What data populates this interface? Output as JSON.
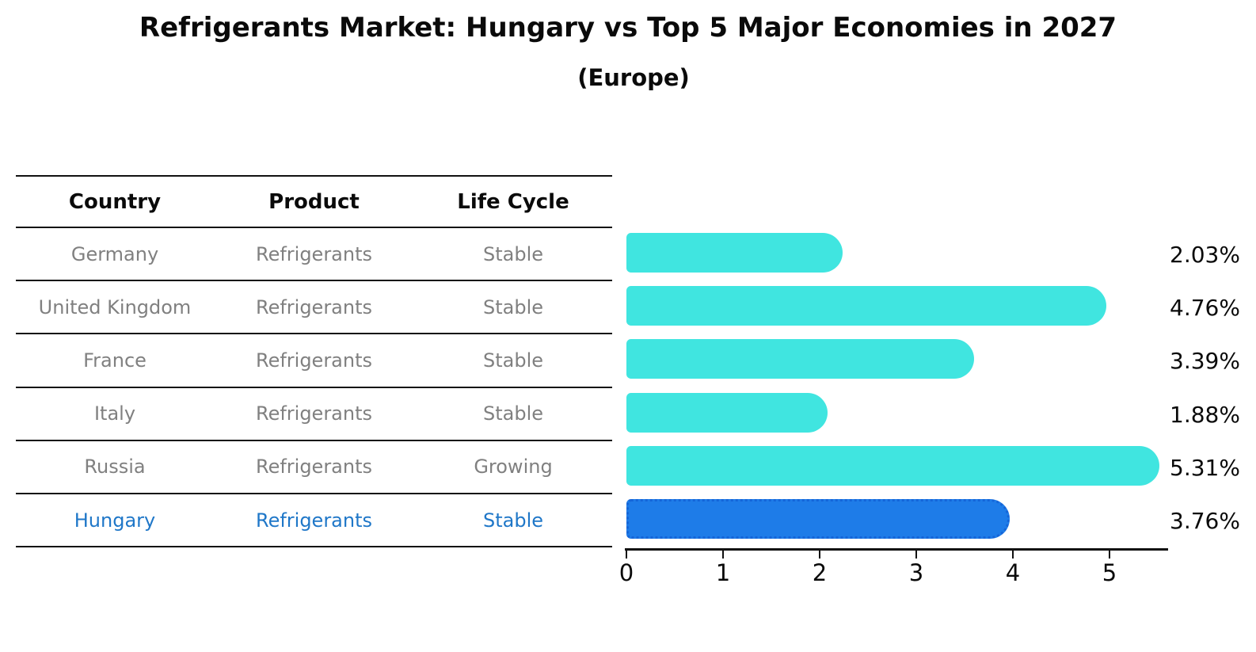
{
  "title": "Refrigerants Market: Hungary vs Top 5 Major Economies in 2027",
  "subtitle": "(Europe)",
  "table": {
    "headers": [
      "Country",
      "Product",
      "Life Cycle"
    ],
    "rows": [
      {
        "country": "Germany",
        "product": "Refrigerants",
        "life_cycle": "Stable",
        "highlight": false
      },
      {
        "country": "United Kingdom",
        "product": "Refrigerants",
        "life_cycle": "Stable",
        "highlight": false
      },
      {
        "country": "France",
        "product": "Refrigerants",
        "life_cycle": "Stable",
        "highlight": false
      },
      {
        "country": "Italy",
        "product": "Refrigerants",
        "life_cycle": "Stable",
        "highlight": false
      },
      {
        "country": "Russia",
        "product": "Refrigerants",
        "life_cycle": "Growing",
        "highlight": false
      },
      {
        "country": "Hungary",
        "product": "Refrigerants",
        "life_cycle": "Stable",
        "highlight": true
      }
    ]
  },
  "chart_data": {
    "type": "bar",
    "orientation": "horizontal",
    "categories": [
      "Germany",
      "United Kingdom",
      "France",
      "Italy",
      "Russia",
      "Hungary"
    ],
    "values": [
      2.03,
      4.76,
      3.39,
      1.88,
      5.31,
      3.76
    ],
    "value_labels": [
      "2.03%",
      "4.76%",
      "3.39%",
      "1.88%",
      "5.31%",
      "3.76%"
    ],
    "x_ticks": [
      0,
      1,
      2,
      3,
      4,
      5
    ],
    "xlim": [
      0,
      5.6
    ],
    "grid": false,
    "legend": null,
    "title": "Refrigerants Market: Hungary vs Top 5 Major Economies in 2027 (Europe)",
    "xlabel": "",
    "ylabel": "",
    "bar_color": "#40E5E0",
    "highlight_index": 5,
    "highlight_bar_color": "#1E7CE8",
    "highlight_border_color": "#1565D8",
    "highlight_text_color": "#1F77C8",
    "row_text_color": "#808080",
    "axis_color": "#111111"
  }
}
